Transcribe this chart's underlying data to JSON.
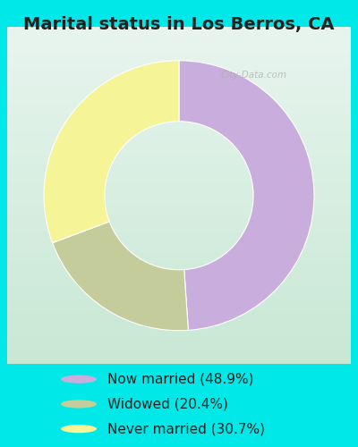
{
  "title": "Marital status in Los Berros, CA",
  "slices": [
    48.9,
    20.4,
    30.7
  ],
  "labels": [
    "Now married (48.9%)",
    "Widowed (20.4%)",
    "Never married (30.7%)"
  ],
  "colors": [
    "#c9aedd",
    "#c3cc9a",
    "#f5f598"
  ],
  "background_color": "#00e8e8",
  "chart_bg_top": "#e8f5ef",
  "chart_bg_bottom": "#d0ece0",
  "watermark": "City-Data.com",
  "title_fontsize": 14,
  "legend_fontsize": 11,
  "donut_width": 0.45,
  "startangle": 90,
  "title_color": "#222222"
}
